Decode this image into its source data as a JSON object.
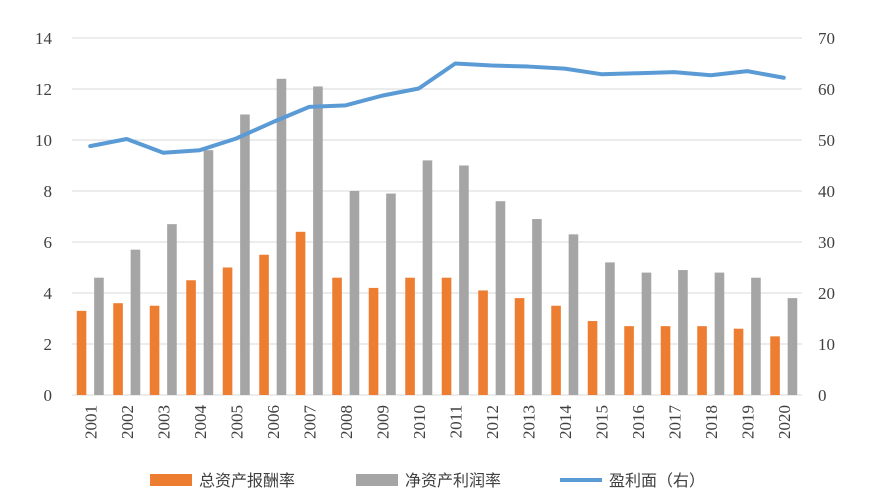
{
  "chart_data": {
    "type": "bar",
    "categories": [
      "2001",
      "2002",
      "2003",
      "2004",
      "2005",
      "2006",
      "2007",
      "2008",
      "2009",
      "2010",
      "2011",
      "2012",
      "2013",
      "2014",
      "2015",
      "2016",
      "2017",
      "2018",
      "2019",
      "2020"
    ],
    "series": [
      {
        "name": "总资产报酬率",
        "type": "bar",
        "axis": "left",
        "color": "#ED7D31",
        "values": [
          3.3,
          3.6,
          3.5,
          4.5,
          5.0,
          5.5,
          6.4,
          4.6,
          4.2,
          4.6,
          4.6,
          4.1,
          3.8,
          3.5,
          2.9,
          2.7,
          2.7,
          2.7,
          2.6,
          2.3
        ]
      },
      {
        "name": "净资产利润率",
        "type": "bar",
        "axis": "left",
        "color": "#A5A5A5",
        "values": [
          4.6,
          5.7,
          6.7,
          9.6,
          11.0,
          12.4,
          12.1,
          8.0,
          7.9,
          9.2,
          9.0,
          7.6,
          6.9,
          6.3,
          5.2,
          4.8,
          4.9,
          4.8,
          4.6,
          3.8
        ]
      },
      {
        "name": "盈利面（右）",
        "type": "line",
        "axis": "right",
        "color": "#5B9BD5",
        "values": [
          48.8,
          50.2,
          47.5,
          48.0,
          50.3,
          53.5,
          56.5,
          56.8,
          58.7,
          60.1,
          65.0,
          64.6,
          64.4,
          64.0,
          62.9,
          63.1,
          63.3,
          62.7,
          63.5,
          62.2
        ]
      }
    ],
    "y_left": {
      "range": [
        0,
        14
      ],
      "ticks": [
        0,
        2,
        4,
        6,
        8,
        10,
        12,
        14
      ]
    },
    "y_right": {
      "range": [
        0,
        70
      ],
      "ticks": [
        0,
        10,
        20,
        30,
        40,
        50,
        60,
        70
      ]
    },
    "grid": true,
    "legend_position": "bottom",
    "title": "",
    "xlabel": "",
    "ylabel": ""
  }
}
